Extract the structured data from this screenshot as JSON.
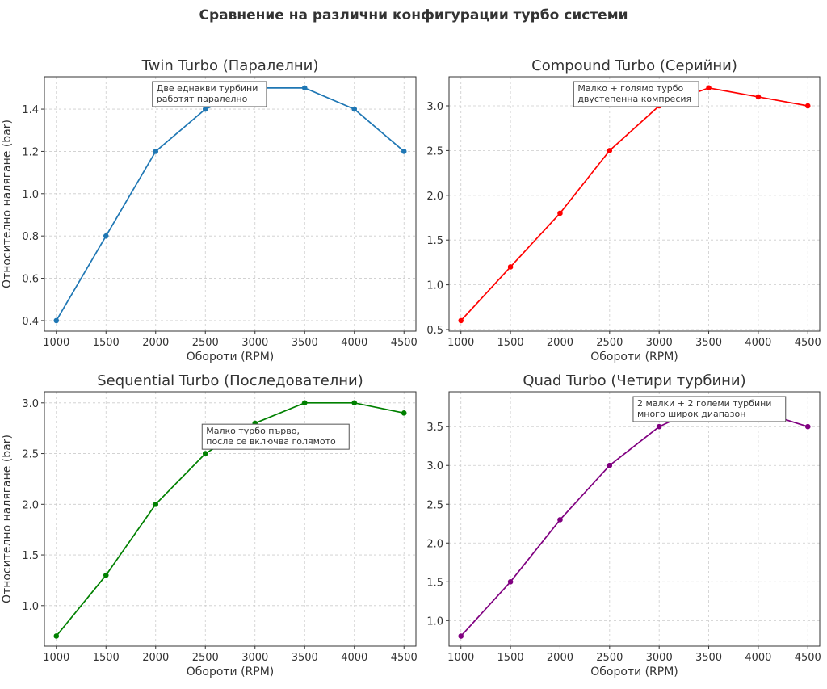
{
  "suptitle": "Сравнение на различни конфигурации турбо системи",
  "chart_data": [
    {
      "type": "line",
      "title": "Twin Turbo (Паралелни)",
      "xlabel": "Обороти (RPM)",
      "ylabel": "Относително налягане (bar)",
      "x": [
        1000,
        1500,
        2000,
        2500,
        3000,
        3500,
        4000,
        4500
      ],
      "values": [
        0.4,
        0.8,
        1.2,
        1.4,
        1.5,
        1.5,
        1.4,
        1.2
      ],
      "color": "#1f77b4",
      "xlim": [
        880,
        4620
      ],
      "ylim": [
        0.35,
        1.553
      ],
      "yticks": [
        0.4,
        0.6,
        0.8,
        1.0,
        1.2,
        1.4
      ],
      "ydec": 1,
      "annotation": {
        "lines": [
          "Две еднакви турбини",
          "работят паралелно"
        ],
        "x": 2000,
        "y": 1.69
      }
    },
    {
      "type": "line",
      "title": "Compound Turbo (Серийни)",
      "xlabel": "Обороти (RPM)",
      "ylabel": "",
      "x": [
        1000,
        1500,
        2000,
        2500,
        3000,
        3500,
        4000,
        4500
      ],
      "values": [
        0.6,
        1.2,
        1.8,
        2.5,
        3.0,
        3.2,
        3.1,
        3.0
      ],
      "color": "#ff0000",
      "xlim": [
        880,
        4620
      ],
      "ylim": [
        0.482,
        3.325
      ],
      "yticks": [
        0.5,
        1.0,
        1.5,
        2.0,
        2.5,
        3.0
      ],
      "ydec": 1,
      "annotation": {
        "lines": [
          "Малко + голямо турбо",
          "двустепенна компресия"
        ],
        "x": 2170,
        "y": 3.52
      }
    },
    {
      "type": "line",
      "title": "Sequential Turbo (Последователни)",
      "xlabel": "Обороти (RPM)",
      "ylabel": "Относително налягане (bar)",
      "x": [
        1000,
        1500,
        2000,
        2500,
        3000,
        3500,
        4000,
        4500
      ],
      "values": [
        0.7,
        1.3,
        2.0,
        2.5,
        2.8,
        3.0,
        3.0,
        2.9
      ],
      "color": "#008000",
      "xlim": [
        880,
        4620
      ],
      "ylim": [
        0.6,
        3.11
      ],
      "yticks": [
        1.0,
        1.5,
        2.0,
        2.5,
        3.0
      ],
      "ydec": 1,
      "annotation": {
        "lines": [
          "Малко турбо първо,",
          "после се включва голямото"
        ],
        "x": 2500,
        "y": 2.79
      }
    },
    {
      "type": "line",
      "title": "Quad Turbo (Четири турбини)",
      "xlabel": "Обороти (RPM)",
      "ylabel": "",
      "x": [
        1000,
        1500,
        2000,
        2500,
        3000,
        3500,
        4000,
        4500
      ],
      "values": [
        0.8,
        1.5,
        2.3,
        3.0,
        3.5,
        3.8,
        3.7,
        3.5
      ],
      "color": "#800080",
      "xlim": [
        880,
        4620
      ],
      "ylim": [
        0.67,
        3.95
      ],
      "yticks": [
        1.0,
        1.5,
        2.0,
        2.5,
        3.0,
        3.5
      ],
      "ydec": 1,
      "annotation": {
        "lines": [
          "2 малки + 2 големи турбини",
          "много широк диапазон"
        ],
        "x": 2770,
        "y": 4.14
      }
    }
  ],
  "xticks": [
    1000,
    1500,
    2000,
    2500,
    3000,
    3500,
    4000,
    4500
  ]
}
